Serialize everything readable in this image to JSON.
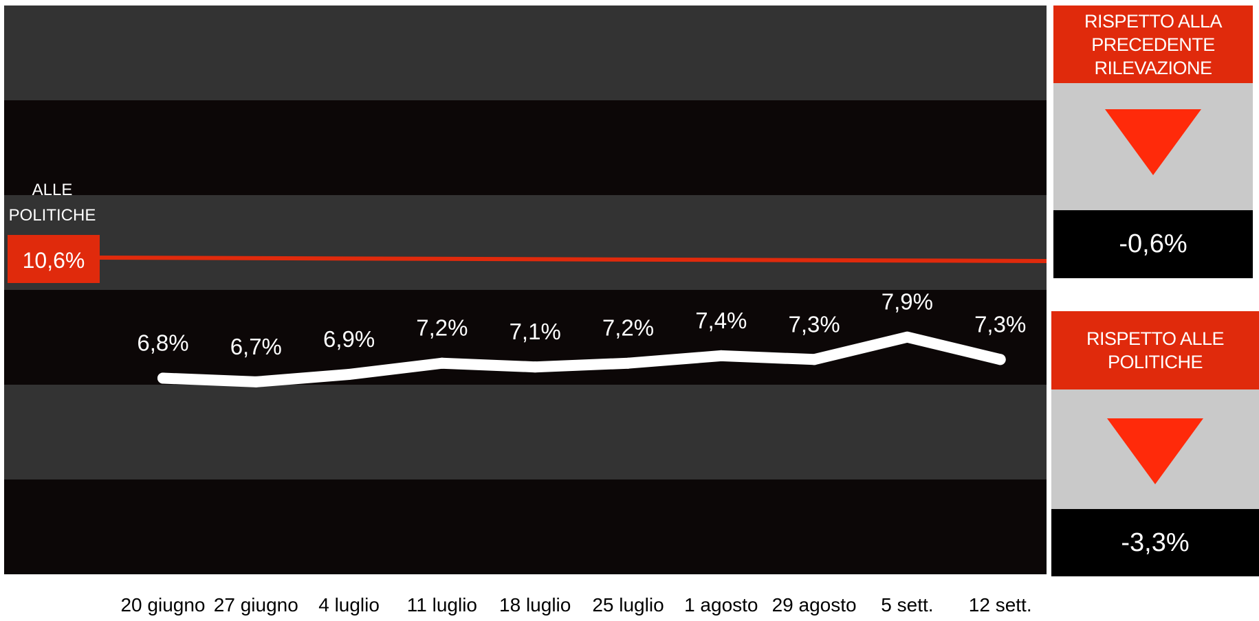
{
  "colors": {
    "reference": "#e02a0c",
    "line": "#ffffff",
    "band_dark": "#0c0707",
    "band_light": "#333333",
    "triangle": "#ff2a0a"
  },
  "chart_data": {
    "type": "line",
    "x": [
      "20 giugno",
      "27 giugno",
      "4 luglio",
      "11 luglio",
      "18 luglio",
      "25 luglio",
      "1 agosto",
      "29 agosto",
      "5 sett.",
      "12 sett."
    ],
    "series": [
      {
        "values": [
          6.8,
          6.7,
          6.9,
          7.2,
          7.1,
          7.2,
          7.4,
          7.3,
          7.9,
          7.3
        ],
        "labels": [
          "6,8%",
          "6,7%",
          "6,9%",
          "7,2%",
          "7,1%",
          "7,2%",
          "7,4%",
          "7,3%",
          "7,9%",
          "7,3%"
        ]
      }
    ],
    "reference_line": {
      "value": 10.6,
      "label": "10,6%",
      "caption": [
        "ALLE",
        "POLITICHE"
      ]
    },
    "grid": "alternating horizontal bands",
    "legend": "none"
  },
  "panels": [
    {
      "title": [
        "RISPETTO ALLA",
        "PRECEDENTE RILEVAZIONE"
      ],
      "indicator": "down-triangle-icon",
      "value": "-0,6%"
    },
    {
      "title": [
        "RISPETTO ALLE POLITICHE"
      ],
      "indicator": "down-triangle-icon",
      "value": "-3,3%"
    }
  ]
}
